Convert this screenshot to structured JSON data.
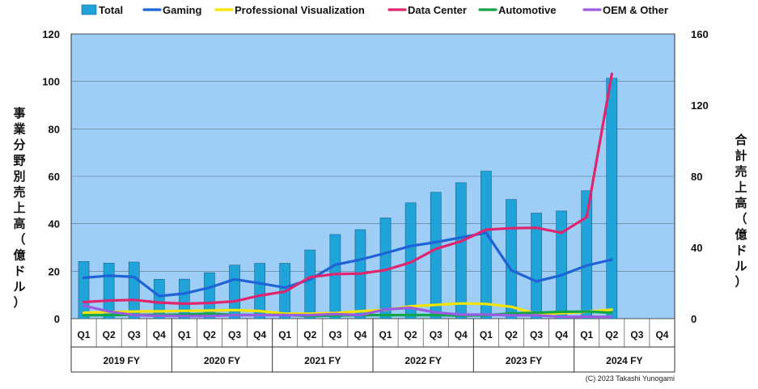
{
  "chart_data": {
    "type": "bar",
    "credit": "(C) 2023 Takashi Yunogami",
    "y_left": {
      "label_chars": [
        "事",
        "業",
        "分",
        "野",
        "別",
        "売",
        "上",
        "高",
        "（",
        "億",
        "ド",
        "ル",
        "）"
      ],
      "lim": [
        0,
        120
      ],
      "ticks": [
        "0",
        "20",
        "40",
        "60",
        "80",
        "100",
        "120"
      ]
    },
    "y_right": {
      "label_chars": [
        "合",
        "計",
        "売",
        "上",
        "高",
        "（",
        "億",
        "ド",
        "ル",
        "）"
      ],
      "lim": [
        0,
        160
      ],
      "ticks": [
        "0",
        "40",
        "80",
        "120",
        "160"
      ]
    },
    "quarters": [
      "Q1",
      "Q2",
      "Q3",
      "Q4",
      "Q1",
      "Q2",
      "Q3",
      "Q4",
      "Q1",
      "Q2",
      "Q3",
      "Q4",
      "Q1",
      "Q2",
      "Q3",
      "Q4",
      "Q1",
      "Q2",
      "Q3",
      "Q4",
      "Q1",
      "Q2",
      "Q3",
      "Q4"
    ],
    "years": [
      "2019 FY",
      "2020 FY",
      "2021 FY",
      "2022 FY",
      "2023 FY",
      "2024 FY"
    ],
    "legend": [
      {
        "name": "Total",
        "color": "#1fa3d9",
        "kind": "bar"
      },
      {
        "name": "Gaming",
        "color": "#1f63d6",
        "kind": "line"
      },
      {
        "name": "Professional Visualization",
        "color": "#f5e400",
        "kind": "line"
      },
      {
        "name": "Data Center",
        "color": "#e0246d",
        "kind": "line"
      },
      {
        "name": "Automotive",
        "color": "#13a54a",
        "kind": "line"
      },
      {
        "name": "OEM & Other",
        "color": "#9a5ce0",
        "kind": "line"
      }
    ],
    "bars": {
      "name": "Total",
      "axis": "right",
      "color": "#1fa3d9",
      "values": [
        32.1,
        31.2,
        31.8,
        22.1,
        22.2,
        25.8,
        30.1,
        31.1,
        31.1,
        38.6,
        47.3,
        50.0,
        56.6,
        65.1,
        71.0,
        76.4,
        82.9,
        67.0,
        59.3,
        60.5,
        71.9,
        135.1,
        null,
        null
      ]
    },
    "series": [
      {
        "name": "Gaming",
        "color": "#1f63d6",
        "values": [
          17.2,
          18.1,
          17.6,
          9.5,
          10.6,
          13.1,
          16.6,
          14.9,
          13.1,
          16.5,
          22.7,
          24.9,
          27.6,
          30.6,
          32.2,
          34.2,
          36.2,
          20.4,
          15.7,
          18.3,
          22.4,
          24.9,
          null,
          null
        ]
      },
      {
        "name": "Professional Visualization",
        "color": "#f5e400",
        "values": [
          2.5,
          2.8,
          3.0,
          3.1,
          3.3,
          3.4,
          3.6,
          3.2,
          2.1,
          2.1,
          2.4,
          3.1,
          3.7,
          5.2,
          5.8,
          6.4,
          6.2,
          5.0,
          2.0,
          2.3,
          2.9,
          3.8,
          null,
          null
        ]
      },
      {
        "name": "Data Center",
        "color": "#e0246d",
        "values": [
          7.0,
          7.6,
          7.9,
          6.8,
          6.3,
          6.6,
          7.3,
          9.7,
          11.4,
          17.5,
          18.8,
          19.0,
          20.5,
          23.7,
          29.4,
          32.6,
          37.5,
          38.1,
          38.3,
          36.2,
          42.8,
          103.2,
          null,
          null
        ]
      },
      {
        "name": "Automotive",
        "color": "#13a54a",
        "values": [
          1.4,
          1.5,
          1.6,
          1.6,
          1.7,
          2.1,
          1.6,
          1.6,
          1.6,
          1.1,
          1.3,
          1.5,
          1.5,
          1.5,
          1.5,
          1.3,
          1.4,
          2.2,
          2.5,
          2.9,
          3.0,
          2.5,
          null,
          null
        ]
      },
      {
        "name": "OEM & Other",
        "color": "#9a5ce0",
        "values": [
          5.5,
          3.0,
          1.5,
          1.2,
          1.1,
          1.1,
          1.5,
          1.5,
          1.5,
          1.5,
          1.9,
          1.5,
          3.9,
          4.6,
          2.6,
          1.7,
          1.7,
          1.4,
          1.4,
          0.8,
          0.8,
          0.8,
          null,
          null
        ]
      }
    ]
  }
}
